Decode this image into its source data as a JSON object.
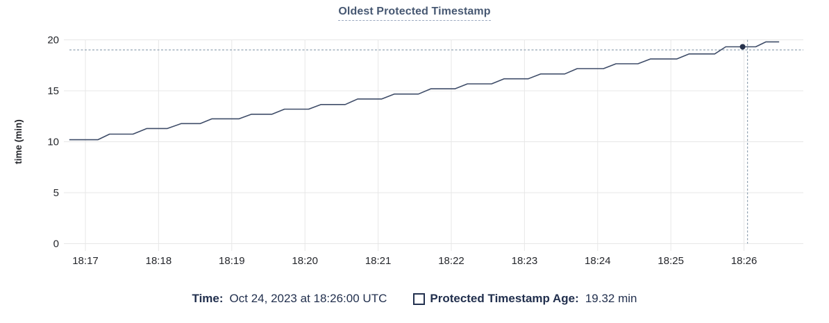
{
  "header": {
    "title": "Oldest Protected Timestamp"
  },
  "legend": {
    "time_label": "Time:",
    "time_value": "Oct 24, 2023 at 18:26:00 UTC",
    "series_label": "Protected Timestamp Age:",
    "series_value": "19.32 min"
  },
  "colors": {
    "line": "#3e4c68",
    "dot": "#26324c",
    "grid": "#e7e7e7",
    "crosshair": "#92a3b2",
    "tick_text": "#24262b",
    "title": "#475872",
    "legend_text": "#22304e"
  },
  "chart_data": {
    "type": "line",
    "title": "Oldest Protected Timestamp",
    "xlabel": "",
    "ylabel": "time (min)",
    "ylim": [
      0,
      20
    ],
    "grid": true,
    "legend_position": "bottom",
    "yticks": [
      {
        "v": 0,
        "label": "0"
      },
      {
        "v": 5,
        "label": "5"
      },
      {
        "v": 10,
        "label": "10"
      },
      {
        "v": 15,
        "label": "15"
      },
      {
        "v": 20,
        "label": "20"
      }
    ],
    "xticks": [
      {
        "t": 17,
        "label": "18:17"
      },
      {
        "t": 18,
        "label": "18:18"
      },
      {
        "t": 19,
        "label": "18:19"
      },
      {
        "t": 20,
        "label": "18:20"
      },
      {
        "t": 21,
        "label": "18:21"
      },
      {
        "t": 22,
        "label": "18:22"
      },
      {
        "t": 23,
        "label": "18:23"
      },
      {
        "t": 24,
        "label": "18:24"
      },
      {
        "t": 25,
        "label": "18:25"
      },
      {
        "t": 26,
        "label": "18:26"
      }
    ],
    "series": [
      {
        "name": "Protected Timestamp Age",
        "units": "min",
        "points": [
          [
            16.78,
            10.2
          ],
          [
            17.17,
            10.2
          ],
          [
            17.33,
            10.75
          ],
          [
            17.65,
            10.75
          ],
          [
            17.84,
            11.3
          ],
          [
            18.12,
            11.3
          ],
          [
            18.31,
            11.78
          ],
          [
            18.57,
            11.78
          ],
          [
            18.73,
            12.25
          ],
          [
            19.1,
            12.25
          ],
          [
            19.27,
            12.7
          ],
          [
            19.55,
            12.7
          ],
          [
            19.72,
            13.2
          ],
          [
            20.05,
            13.2
          ],
          [
            20.22,
            13.65
          ],
          [
            20.55,
            13.65
          ],
          [
            20.72,
            14.2
          ],
          [
            21.05,
            14.2
          ],
          [
            21.22,
            14.68
          ],
          [
            21.55,
            14.68
          ],
          [
            21.72,
            15.2
          ],
          [
            22.05,
            15.2
          ],
          [
            22.22,
            15.68
          ],
          [
            22.55,
            15.68
          ],
          [
            22.72,
            16.18
          ],
          [
            23.05,
            16.18
          ],
          [
            23.22,
            16.65
          ],
          [
            23.55,
            16.65
          ],
          [
            23.72,
            17.18
          ],
          [
            24.08,
            17.18
          ],
          [
            24.25,
            17.65
          ],
          [
            24.55,
            17.65
          ],
          [
            24.72,
            18.12
          ],
          [
            25.08,
            18.12
          ],
          [
            25.25,
            18.62
          ],
          [
            25.6,
            18.62
          ],
          [
            25.75,
            19.32
          ],
          [
            26.16,
            19.32
          ],
          [
            26.3,
            19.8
          ],
          [
            26.48,
            19.8
          ]
        ]
      }
    ],
    "hover": {
      "t": 26.0,
      "value": 19.32,
      "time_label": "18:26:00"
    }
  }
}
